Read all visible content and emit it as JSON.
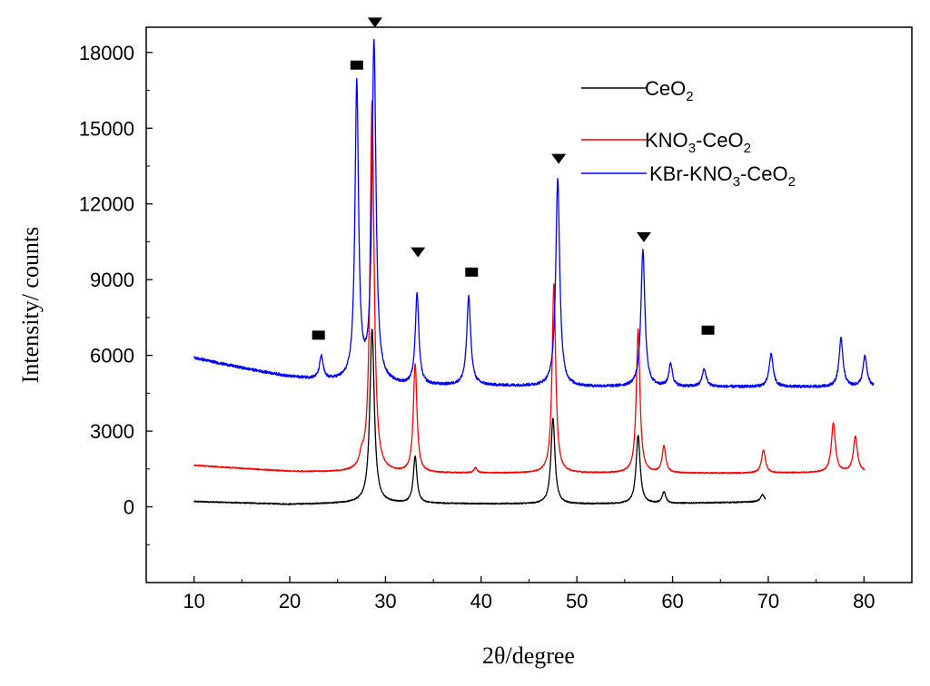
{
  "chart_data": {
    "type": "line",
    "title": "",
    "xlabel": "2θ/degree",
    "ylabel": "Intensity/ counts",
    "xlim": [
      5,
      85
    ],
    "ylim": [
      -3000,
      19000
    ],
    "xticks": [
      10,
      20,
      30,
      40,
      50,
      60,
      70,
      80
    ],
    "yticks": [
      0,
      3000,
      6000,
      9000,
      12000,
      15000,
      18000
    ],
    "grid": false,
    "legend_position": "top-right",
    "series": [
      {
        "name": "CeO2",
        "label_main": "CeO",
        "label_sub": "2",
        "color": "#000000",
        "x_range": [
          10,
          69.7
        ],
        "baseline": [
          [
            10,
            210
          ],
          [
            20,
            100
          ],
          [
            27,
            150
          ],
          [
            40,
            120
          ],
          [
            50,
            110
          ],
          [
            60,
            130
          ],
          [
            69.7,
            200
          ]
        ],
        "peaks": [
          {
            "x": 28.6,
            "height": 6900,
            "width": 0.55
          },
          {
            "x": 33.1,
            "height": 1850,
            "width": 0.45
          },
          {
            "x": 47.5,
            "height": 3400,
            "width": 0.5
          },
          {
            "x": 56.4,
            "height": 2700,
            "width": 0.5
          },
          {
            "x": 59.1,
            "height": 450,
            "width": 0.45
          },
          {
            "x": 69.4,
            "height": 280,
            "width": 0.5
          }
        ]
      },
      {
        "name": "KNO3-CeO2",
        "label_main": "KNO",
        "label_sub": "3",
        "label_main2": "-CeO",
        "label_sub2": "2",
        "color": "#ff0000",
        "x_range": [
          10,
          80.1
        ],
        "baseline": [
          [
            10,
            1640
          ],
          [
            20,
            1400
          ],
          [
            30,
            1330
          ],
          [
            40,
            1330
          ],
          [
            50,
            1330
          ],
          [
            60,
            1330
          ],
          [
            70,
            1330
          ],
          [
            80.1,
            1380
          ]
        ],
        "peaks": [
          {
            "x": 27.5,
            "height": 400,
            "width": 0.5
          },
          {
            "x": 28.6,
            "height": 14700,
            "width": 0.5
          },
          {
            "x": 33.1,
            "height": 4300,
            "width": 0.45
          },
          {
            "x": 39.4,
            "height": 200,
            "width": 0.4
          },
          {
            "x": 47.6,
            "height": 7500,
            "width": 0.45
          },
          {
            "x": 56.4,
            "height": 5700,
            "width": 0.45
          },
          {
            "x": 59.1,
            "height": 1050,
            "width": 0.45
          },
          {
            "x": 69.5,
            "height": 900,
            "width": 0.5
          },
          {
            "x": 76.8,
            "height": 1950,
            "width": 0.5
          },
          {
            "x": 79.1,
            "height": 1400,
            "width": 0.5
          }
        ]
      },
      {
        "name": "KBr-KNO3-CeO2",
        "label_main": "KBr-KNO",
        "label_sub": "3",
        "label_main2": "-CeO",
        "label_sub2": "2",
        "color": "#0000ff",
        "x_range": [
          10,
          81
        ],
        "baseline": [
          [
            10,
            5900
          ],
          [
            15,
            5500
          ],
          [
            20,
            5150
          ],
          [
            24,
            5000
          ],
          [
            28,
            4950
          ],
          [
            32,
            4800
          ],
          [
            40,
            4800
          ],
          [
            50,
            4750
          ],
          [
            60,
            4750
          ],
          [
            70,
            4750
          ],
          [
            81,
            4750
          ]
        ],
        "peaks": [
          {
            "x": 23.3,
            "height": 900,
            "width": 0.45
          },
          {
            "x": 27.0,
            "height": 11700,
            "width": 0.45
          },
          {
            "x": 28.8,
            "height": 13400,
            "width": 0.5
          },
          {
            "x": 33.3,
            "height": 3600,
            "width": 0.45
          },
          {
            "x": 38.7,
            "height": 3500,
            "width": 0.5
          },
          {
            "x": 48.0,
            "height": 8200,
            "width": 0.5
          },
          {
            "x": 56.9,
            "height": 5400,
            "width": 0.5
          },
          {
            "x": 59.8,
            "height": 900,
            "width": 0.45
          },
          {
            "x": 63.3,
            "height": 700,
            "width": 0.5
          },
          {
            "x": 70.3,
            "height": 1300,
            "width": 0.5
          },
          {
            "x": 77.6,
            "height": 1900,
            "width": 0.5
          },
          {
            "x": 80.1,
            "height": 1200,
            "width": 0.5
          }
        ]
      }
    ],
    "annotations": [
      {
        "symbol": "square",
        "x": 23.0,
        "y": 6800
      },
      {
        "symbol": "square",
        "x": 27.0,
        "y": 17500
      },
      {
        "symbol": "square",
        "x": 39.0,
        "y": 9300
      },
      {
        "symbol": "square",
        "x": 63.7,
        "y": 7000
      },
      {
        "symbol": "triangle",
        "x": 28.9,
        "y": 19200
      },
      {
        "symbol": "triangle",
        "x": 33.4,
        "y": 10100
      },
      {
        "symbol": "triangle",
        "x": 48.1,
        "y": 13800
      },
      {
        "symbol": "triangle",
        "x": 57.0,
        "y": 10700
      }
    ]
  }
}
